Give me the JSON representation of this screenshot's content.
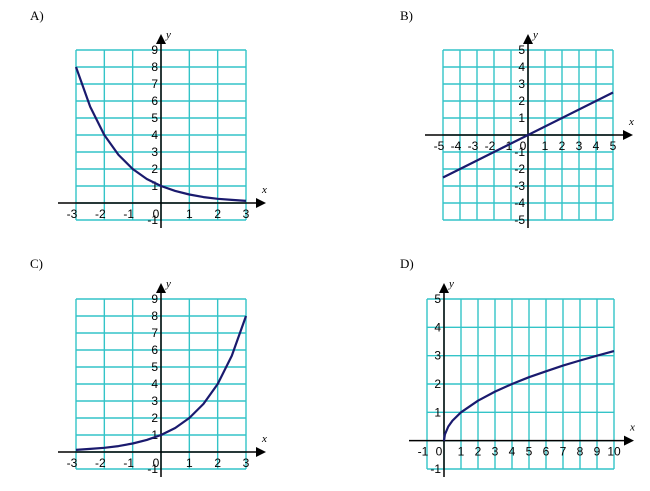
{
  "colors": {
    "grid": "#33c4c8",
    "axis": "#000000",
    "curve": "#1a1a6e",
    "background": "#ffffff"
  },
  "chart_data": [
    {
      "label": "A)",
      "type": "line",
      "function": "y = 2^(-x)",
      "xlim": [
        -3,
        3
      ],
      "ylim": [
        -1,
        9
      ],
      "x_ticks": [
        -3,
        -2,
        -1,
        0,
        1,
        2,
        3
      ],
      "x_tick_labels": [
        "-3",
        "-2",
        "-1",
        "0",
        "1",
        "2",
        "3"
      ],
      "y_ticks": [
        -1,
        1,
        2,
        3,
        4,
        5,
        6,
        7,
        8,
        9
      ],
      "y_tick_labels": [
        "-1",
        "1",
        "2",
        "3",
        "4",
        "5",
        "6",
        "7",
        "8",
        "9"
      ],
      "xlabel": "x",
      "ylabel": "y",
      "grid": true,
      "x": [
        -3,
        -2.5,
        -2,
        -1.5,
        -1,
        -0.5,
        0,
        0.5,
        1,
        1.5,
        2,
        2.5,
        3
      ],
      "y": [
        8,
        5.66,
        4,
        2.83,
        2,
        1.41,
        1,
        0.71,
        0.5,
        0.35,
        0.25,
        0.18,
        0.125
      ]
    },
    {
      "label": "B)",
      "type": "line",
      "function": "y = x/2",
      "xlim": [
        -5,
        5
      ],
      "ylim": [
        -5,
        5
      ],
      "x_ticks": [
        -5,
        -4,
        -3,
        -2,
        -1,
        0,
        1,
        2,
        3,
        4,
        5
      ],
      "x_tick_labels": [
        "-5",
        "-4",
        "-3",
        "-2",
        "-1",
        "0",
        "1",
        "2",
        "3",
        "4",
        "5"
      ],
      "y_ticks": [
        -5,
        -4,
        -3,
        -2,
        -1,
        1,
        2,
        3,
        4,
        5
      ],
      "y_tick_labels": [
        "-5",
        "-4",
        "-3",
        "-2",
        "-1",
        "1",
        "2",
        "3",
        "4",
        "5"
      ],
      "xlabel": "x",
      "ylabel": "y",
      "grid": true,
      "x": [
        -5,
        5
      ],
      "y": [
        -2.5,
        2.5
      ]
    },
    {
      "label": "C)",
      "type": "line",
      "function": "y = 2^x",
      "xlim": [
        -3,
        3
      ],
      "ylim": [
        -1,
        9
      ],
      "x_ticks": [
        -3,
        -2,
        -1,
        0,
        1,
        2,
        3
      ],
      "x_tick_labels": [
        "-3",
        "-2",
        "-1",
        "0",
        "1",
        "2",
        "3"
      ],
      "y_ticks": [
        -1,
        1,
        2,
        3,
        4,
        5,
        6,
        7,
        8,
        9
      ],
      "y_tick_labels": [
        "-1",
        "1",
        "2",
        "3",
        "4",
        "5",
        "6",
        "7",
        "8",
        "9"
      ],
      "xlabel": "x",
      "ylabel": "y",
      "grid": true,
      "x": [
        -3,
        -2.5,
        -2,
        -1.5,
        -1,
        -0.5,
        0,
        0.5,
        1,
        1.5,
        2,
        2.5,
        3
      ],
      "y": [
        0.125,
        0.18,
        0.25,
        0.35,
        0.5,
        0.71,
        1,
        1.41,
        2,
        2.83,
        4,
        5.66,
        8
      ]
    },
    {
      "label": "D)",
      "type": "line",
      "function": "y = sqrt(x)",
      "xlim": [
        -1,
        10
      ],
      "ylim": [
        -1,
        5
      ],
      "x_ticks": [
        -1,
        0,
        1,
        2,
        3,
        4,
        5,
        6,
        7,
        8,
        9,
        10
      ],
      "x_tick_labels": [
        "-1",
        "0",
        "1",
        "2",
        "3",
        "4",
        "5",
        "6",
        "7",
        "8",
        "9",
        "10"
      ],
      "y_ticks": [
        -1,
        1,
        2,
        3,
        4,
        5
      ],
      "y_tick_labels": [
        "-1",
        "1",
        "2",
        "3",
        "4",
        "5"
      ],
      "xlabel": "x",
      "ylabel": "y",
      "grid": true,
      "x": [
        0,
        0.05,
        0.25,
        0.5,
        1,
        2,
        3,
        4,
        5,
        6,
        7,
        8,
        9,
        10
      ],
      "y": [
        0,
        0.22,
        0.5,
        0.71,
        1,
        1.41,
        1.73,
        2,
        2.24,
        2.45,
        2.65,
        2.83,
        3,
        3.16
      ]
    }
  ]
}
